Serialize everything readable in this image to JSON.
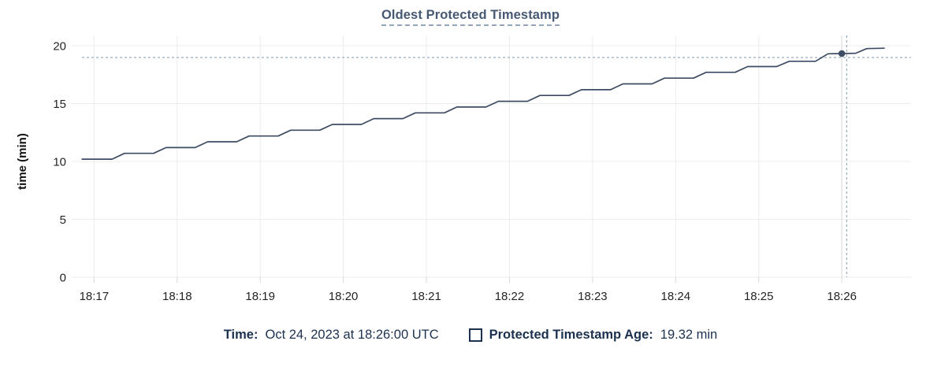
{
  "chart_data": {
    "type": "line",
    "title": "Oldest Protected Timestamp",
    "ylabel": "time (min)",
    "xlabel": "",
    "x_unit": "seconds since 18:17:00 UTC",
    "xlim": [
      -15,
      590
    ],
    "ylim": [
      0,
      20
    ],
    "grid": true,
    "y_ticks": [
      0,
      5,
      10,
      15,
      20
    ],
    "x_ticks": [
      {
        "t": 0,
        "label": "18:17"
      },
      {
        "t": 60,
        "label": "18:18"
      },
      {
        "t": 120,
        "label": "18:19"
      },
      {
        "t": 180,
        "label": "18:20"
      },
      {
        "t": 240,
        "label": "18:21"
      },
      {
        "t": 300,
        "label": "18:22"
      },
      {
        "t": 360,
        "label": "18:23"
      },
      {
        "t": 420,
        "label": "18:24"
      },
      {
        "t": 480,
        "label": "18:25"
      },
      {
        "t": 540,
        "label": "18:26"
      }
    ],
    "series": [
      {
        "name": "Protected Timestamp Age",
        "unit": "min",
        "color": "#3d4c63",
        "points": [
          [
            -9,
            10.2
          ],
          [
            13,
            10.2
          ],
          [
            22,
            10.7
          ],
          [
            43,
            10.7
          ],
          [
            52,
            11.2
          ],
          [
            73,
            11.2
          ],
          [
            82,
            11.7
          ],
          [
            103,
            11.7
          ],
          [
            112,
            12.2
          ],
          [
            133,
            12.2
          ],
          [
            142,
            12.7
          ],
          [
            163,
            12.7
          ],
          [
            172,
            13.2
          ],
          [
            193,
            13.2
          ],
          [
            202,
            13.7
          ],
          [
            223,
            13.7
          ],
          [
            232,
            14.2
          ],
          [
            253,
            14.2
          ],
          [
            262,
            14.7
          ],
          [
            283,
            14.7
          ],
          [
            292,
            15.2
          ],
          [
            313,
            15.2
          ],
          [
            322,
            15.7
          ],
          [
            343,
            15.7
          ],
          [
            352,
            16.2
          ],
          [
            373,
            16.2
          ],
          [
            382,
            16.7
          ],
          [
            403,
            16.7
          ],
          [
            412,
            17.2
          ],
          [
            433,
            17.2
          ],
          [
            442,
            17.7
          ],
          [
            463,
            17.7
          ],
          [
            472,
            18.2
          ],
          [
            493,
            18.2
          ],
          [
            502,
            18.65
          ],
          [
            521,
            18.65
          ],
          [
            530,
            19.3
          ],
          [
            540,
            19.32
          ],
          [
            550,
            19.35
          ],
          [
            558,
            19.75
          ],
          [
            571,
            19.78
          ]
        ]
      }
    ],
    "cursor": {
      "snapped_point": {
        "t": 540,
        "value": 19.32
      },
      "crosshair": {
        "t": 543.5,
        "value": 18.98
      },
      "hover_column_t": 540
    },
    "legend_position": "bottom"
  },
  "legend": {
    "time_label": "Time:",
    "time_value": "Oct 24, 2023 at 18:26:00 UTC",
    "series_label": "Protected Timestamp Age:",
    "series_value": "19.32 min"
  },
  "colors": {
    "line": "#3d4c63",
    "point": "#3d4c63",
    "title": "#475872",
    "legend_text": "#1c3150",
    "tick_text": "#242424",
    "grid": "#ececec",
    "tick_mark": "#d9d9d9",
    "crosshair": "#7f9aab",
    "hover_column": "#e9e9e9"
  }
}
